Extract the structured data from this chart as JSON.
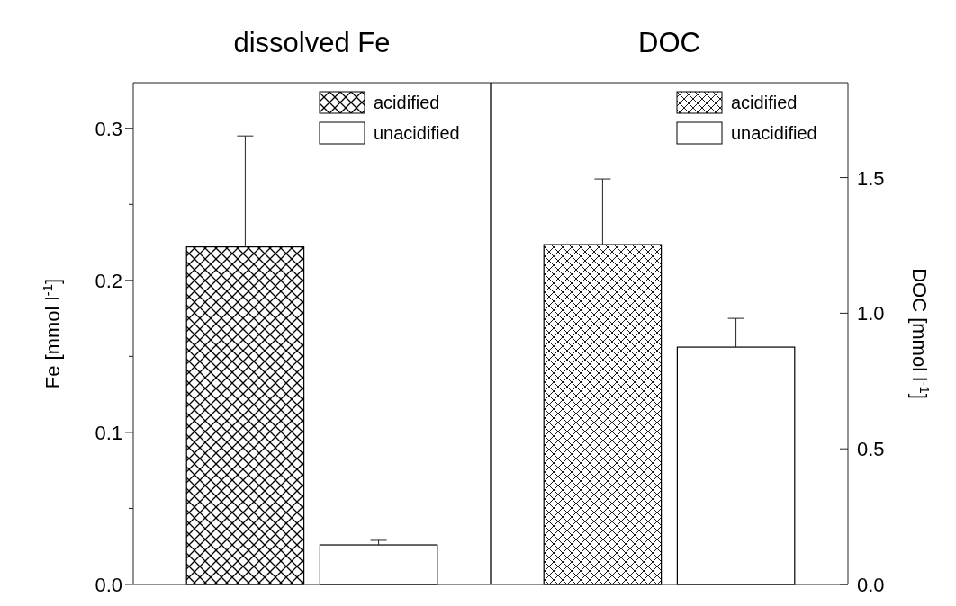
{
  "chart_data": [
    {
      "type": "bar",
      "title": "dissolved Fe",
      "ylabel": "Fe [mmol l$^{-1}$]",
      "categories": [
        null
      ],
      "ylim": [
        0,
        0.33
      ],
      "yticks": [
        {
          "value": 0,
          "label": "0.0"
        },
        {
          "value": 0.05,
          "label": null
        },
        0.1,
        {
          "value": 0.15,
          "label": null
        },
        0.2,
        {
          "value": 0.25,
          "label": null
        },
        0.3
      ],
      "tick_labels": "y",
      "legend": "top right",
      "grid": false,
      "series": [
        {
          "name": "acidified",
          "color": "#000000",
          "values": [
            0.222
          ],
          "errors": [
            0.073
          ]
        },
        {
          "name": "unacidified",
          "color": "#ffffff",
          "values": [
            0.026
          ],
          "errors": [
            0.003
          ]
        }
      ]
    },
    {
      "type": "bar",
      "title": "DOC",
      "ylabel": "DOC [mmol l$^{-1}$]",
      "categories": [
        null
      ],
      "ylim": [
        0,
        1.85
      ],
      "yticks": [
        {
          "value": 0,
          "label": "0.0"
        },
        0.5,
        {
          "value": 1,
          "label": "1.0"
        },
        1.5
      ],
      "tick_labels": "y",
      "legend": "top right",
      "grid": false,
      "series": [
        {
          "name": "acidified",
          "color": "#000000",
          "values": [
            1.253
          ],
          "errors": [
            0.242
          ]
        },
        {
          "name": "unacidified",
          "color": "#ffffff",
          "values": [
            0.875
          ],
          "errors": [
            0.106
          ]
        }
      ]
    }
  ]
}
